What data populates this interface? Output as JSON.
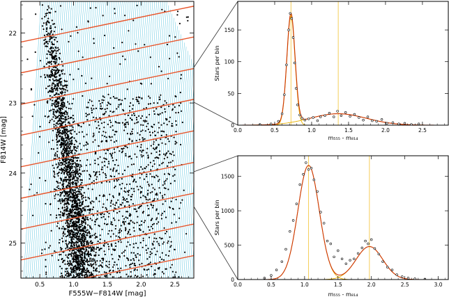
{
  "colors": {
    "stars": "#000000",
    "hatch": "#29b3d6",
    "strip": "#e8542a",
    "fit": "#cc3300",
    "component": "#e8b000",
    "grid_peak": "#f2c230",
    "connector": "#333333"
  },
  "chart_data": [
    {
      "type": "scatter",
      "name": "color-magnitude-diagram",
      "xlabel": "F555W−F814W [mag]",
      "ylabel": "F814W [mag]",
      "xlim": [
        0.22,
        2.78
      ],
      "ylim": [
        25.5,
        21.55
      ],
      "y_inverted": true,
      "xticks": [
        0.5,
        1.0,
        1.5,
        2.0,
        2.5
      ],
      "xtick_labels": [
        "0.5",
        "1.0",
        "1.5",
        "2.0",
        "2.5"
      ],
      "yticks": [
        22,
        23,
        24,
        25
      ],
      "ytick_labels": [
        "22",
        "23",
        "24",
        "25"
      ],
      "main_sequence_ridge": [
        [
          0.63,
          21.6
        ],
        [
          0.68,
          22.2
        ],
        [
          0.76,
          22.8
        ],
        [
          0.86,
          23.4
        ],
        [
          0.94,
          24.0
        ],
        [
          1.02,
          24.6
        ],
        [
          1.08,
          25.2
        ],
        [
          1.1,
          25.5
        ]
      ],
      "strip_lines": {
        "slope_mag_per_color": 0.2,
        "intercepts_at_color_0_22": [
          22.13,
          22.57,
          23.02,
          23.46,
          23.91,
          24.36,
          24.8,
          25.24,
          25.69
        ]
      },
      "hatch": {
        "color_range": [
          0.26,
          2.75
        ],
        "spacing_color": 0.03
      }
    },
    {
      "type": "line",
      "name": "histogram-upper",
      "xlabel": "m₅₅₅ - m₈₁₄",
      "ylabel": "Stars per bin",
      "xlim": [
        0.0,
        2.85
      ],
      "ylim": [
        0,
        195
      ],
      "xticks": [
        0.0,
        0.5,
        1.0,
        1.5,
        2.0,
        2.5
      ],
      "xtick_labels": [
        "0.0",
        "0.5",
        "1.0",
        "1.5",
        "2.0",
        "2.5"
      ],
      "yticks": [
        0,
        50,
        100,
        150
      ],
      "ytick_labels": [
        "0",
        "50",
        "100",
        "150"
      ],
      "components": [
        {
          "name": "narrow-peak",
          "amplitude": 172,
          "center": 0.72,
          "sigma": 0.055
        },
        {
          "name": "broad-peak",
          "amplitude": 18,
          "center": 1.36,
          "sigma": 0.38
        }
      ],
      "peak_markers": [
        0.72,
        1.36
      ],
      "points": [
        [
          0.3,
          1
        ],
        [
          0.45,
          2
        ],
        [
          0.55,
          6
        ],
        [
          0.6,
          18
        ],
        [
          0.63,
          48
        ],
        [
          0.66,
          95
        ],
        [
          0.69,
          150
        ],
        [
          0.71,
          176
        ],
        [
          0.73,
          168
        ],
        [
          0.75,
          138
        ],
        [
          0.77,
          98
        ],
        [
          0.79,
          58
        ],
        [
          0.81,
          32
        ],
        [
          0.84,
          16
        ],
        [
          0.87,
          11
        ],
        [
          0.91,
          8
        ],
        [
          0.96,
          10
        ],
        [
          1.02,
          12
        ],
        [
          1.08,
          7
        ],
        [
          1.12,
          13
        ],
        [
          1.18,
          15
        ],
        [
          1.24,
          19
        ],
        [
          1.3,
          13
        ],
        [
          1.35,
          22
        ],
        [
          1.4,
          15
        ],
        [
          1.46,
          20
        ],
        [
          1.52,
          14
        ],
        [
          1.58,
          17
        ],
        [
          1.64,
          12
        ],
        [
          1.7,
          8
        ],
        [
          1.76,
          13
        ],
        [
          1.82,
          7
        ],
        [
          1.88,
          6
        ],
        [
          1.95,
          9
        ],
        [
          2.02,
          3
        ],
        [
          2.1,
          4
        ],
        [
          2.18,
          2
        ],
        [
          2.26,
          3
        ],
        [
          2.35,
          1
        ],
        [
          2.45,
          2
        ]
      ]
    },
    {
      "type": "line",
      "name": "histogram-lower",
      "xlabel": "m₅₅₅ - m₈₁₄",
      "ylabel": "Stars per bin",
      "xlim": [
        0.0,
        3.15
      ],
      "ylim": [
        0,
        1800
      ],
      "xticks": [
        0.0,
        0.5,
        1.0,
        1.5,
        2.0,
        2.5,
        3.0
      ],
      "xtick_labels": [
        "0.0",
        "0.5",
        "1.0",
        "1.5",
        "2.0",
        "2.5",
        "3.0"
      ],
      "yticks": [
        0,
        500,
        1000,
        1500
      ],
      "ytick_labels": [
        "0",
        "500",
        "1000",
        "1500"
      ],
      "components": [
        {
          "name": "main-sequence-peak",
          "amplitude": 1660,
          "center": 1.06,
          "sigma": 0.16
        },
        {
          "name": "red-peak",
          "amplitude": 480,
          "center": 1.97,
          "sigma": 0.2
        }
      ],
      "peak_markers": [
        1.06,
        1.97
      ],
      "points": [
        [
          0.4,
          20
        ],
        [
          0.5,
          60
        ],
        [
          0.58,
          140
        ],
        [
          0.66,
          260
        ],
        [
          0.72,
          440
        ],
        [
          0.78,
          700
        ],
        [
          0.83,
          860
        ],
        [
          0.88,
          1100
        ],
        [
          0.93,
          1380
        ],
        [
          0.98,
          1530
        ],
        [
          1.02,
          1700
        ],
        [
          1.06,
          1600
        ],
        [
          1.1,
          1620
        ],
        [
          1.14,
          1450
        ],
        [
          1.19,
          1280
        ],
        [
          1.24,
          980
        ],
        [
          1.29,
          820
        ],
        [
          1.34,
          560
        ],
        [
          1.39,
          520
        ],
        [
          1.44,
          330
        ],
        [
          1.5,
          420
        ],
        [
          1.56,
          300
        ],
        [
          1.62,
          230
        ],
        [
          1.68,
          280
        ],
        [
          1.74,
          300
        ],
        [
          1.8,
          380
        ],
        [
          1.86,
          460
        ],
        [
          1.91,
          560
        ],
        [
          1.95,
          520
        ],
        [
          2.0,
          580
        ],
        [
          2.05,
          450
        ],
        [
          2.11,
          370
        ],
        [
          2.17,
          260
        ],
        [
          2.24,
          180
        ],
        [
          2.31,
          140
        ],
        [
          2.38,
          70
        ],
        [
          2.46,
          40
        ],
        [
          2.55,
          20
        ],
        [
          2.65,
          10
        ],
        [
          2.8,
          5
        ]
      ]
    }
  ]
}
